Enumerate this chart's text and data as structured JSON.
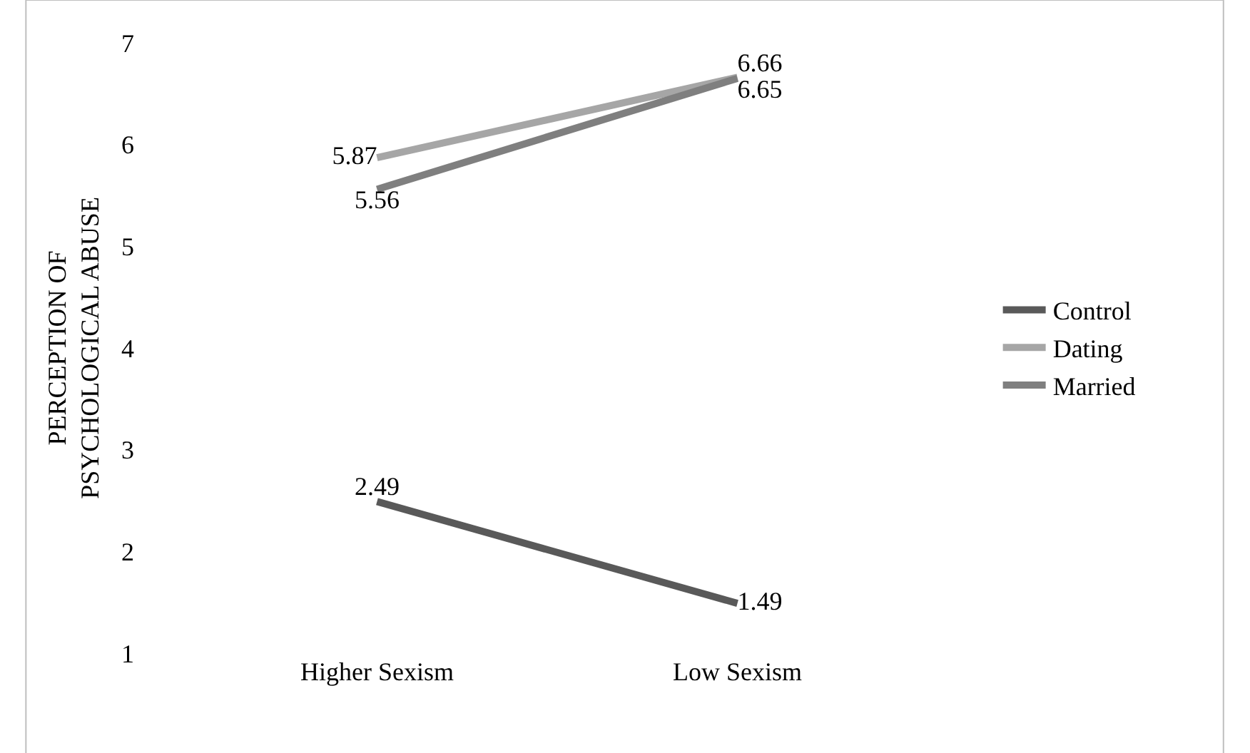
{
  "chart_data": {
    "type": "line",
    "ylabel": "PERCEPTION OF PSYCHOLOGICAL ABUSE",
    "categories": [
      "Higher Sexism",
      "Low Sexism"
    ],
    "series": [
      {
        "name": "Control",
        "color": "#595959",
        "values": [
          2.49,
          1.49
        ]
      },
      {
        "name": "Dating",
        "color": "#a6a6a6",
        "values": [
          5.87,
          6.66
        ]
      },
      {
        "name": "Married",
        "color": "#7f7f7f",
        "values": [
          5.56,
          6.65
        ]
      }
    ],
    "ylim": [
      1,
      7
    ],
    "yticks": [
      1,
      2,
      3,
      4,
      5,
      6,
      7
    ],
    "data_labels": true,
    "grid": false,
    "legend": "right",
    "marker": "none",
    "line_style": "solid"
  }
}
